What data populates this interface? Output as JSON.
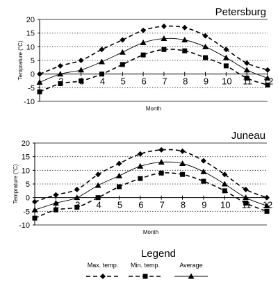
{
  "chart_data": [
    {
      "type": "line",
      "title": "Petersburg",
      "xlabel": "Month",
      "ylabel": "Temprature (°C)",
      "x": [
        1,
        2,
        3,
        4,
        5,
        6,
        7,
        8,
        9,
        10,
        11,
        12
      ],
      "xticks": [
        1,
        2,
        3,
        4,
        5,
        6,
        7,
        8,
        9,
        10,
        11,
        12
      ],
      "yticks": [
        -10,
        -5,
        0,
        5,
        10,
        15,
        20
      ],
      "xlim": [
        1,
        12
      ],
      "ylim": [
        -10,
        20
      ],
      "grid": "horizontal dotted",
      "series": [
        {
          "name": "Max. temp.",
          "marker": "diamond",
          "dash": true,
          "values": [
            0,
            3,
            5,
            9,
            12.5,
            16,
            17.5,
            17,
            14,
            9,
            4,
            1.5
          ]
        },
        {
          "name": "Min. temp.",
          "marker": "square",
          "dash": true,
          "values": [
            -6.5,
            -3.5,
            -2.5,
            0,
            3.5,
            7,
            9,
            8.5,
            6,
            3,
            -1.5,
            -4
          ]
        },
        {
          "name": "Average",
          "marker": "triangle",
          "dash": false,
          "values": [
            -3,
            0,
            1.5,
            4.5,
            8,
            11.5,
            13,
            12.5,
            10,
            6,
            1.5,
            -1.5
          ]
        }
      ]
    },
    {
      "type": "line",
      "title": "Juneau",
      "xlabel": "Month",
      "ylabel": "Temprature (°C)",
      "x": [
        1,
        2,
        3,
        4,
        5,
        6,
        7,
        8,
        9,
        10,
        11,
        12
      ],
      "xticks": [
        1,
        2,
        3,
        4,
        5,
        6,
        7,
        8,
        9,
        10,
        11,
        12
      ],
      "yticks": [
        -10,
        -5,
        0,
        5,
        10,
        15,
        20
      ],
      "xlim": [
        1,
        12
      ],
      "ylim": [
        -10,
        20
      ],
      "grid": "horizontal dotted",
      "series": [
        {
          "name": "Max. temp.",
          "marker": "diamond",
          "dash": true,
          "values": [
            -1.5,
            1,
            3,
            8.5,
            12.5,
            16,
            17.5,
            17,
            13.5,
            8.5,
            3,
            0
          ]
        },
        {
          "name": "Min. temp.",
          "marker": "square",
          "dash": true,
          "values": [
            -7.5,
            -4.5,
            -3.5,
            0,
            4,
            7,
            9,
            8.5,
            6,
            2.5,
            -2,
            -5
          ]
        },
        {
          "name": "Average",
          "marker": "triangle",
          "dash": false,
          "values": [
            -4.5,
            -2,
            0,
            4.5,
            8,
            11.5,
            13,
            12.5,
            9.5,
            5,
            0,
            -3
          ]
        }
      ]
    }
  ],
  "legend": {
    "title": "Legend",
    "items": [
      {
        "label": "Max. temp.",
        "marker": "diamond",
        "dash": true
      },
      {
        "label": "Min. temp.",
        "marker": "square",
        "dash": true
      },
      {
        "label": "Average",
        "marker": "triangle",
        "dash": false
      }
    ]
  },
  "colors": {
    "ink": "#000000",
    "grid": "#000000",
    "background": "#ffffff"
  }
}
